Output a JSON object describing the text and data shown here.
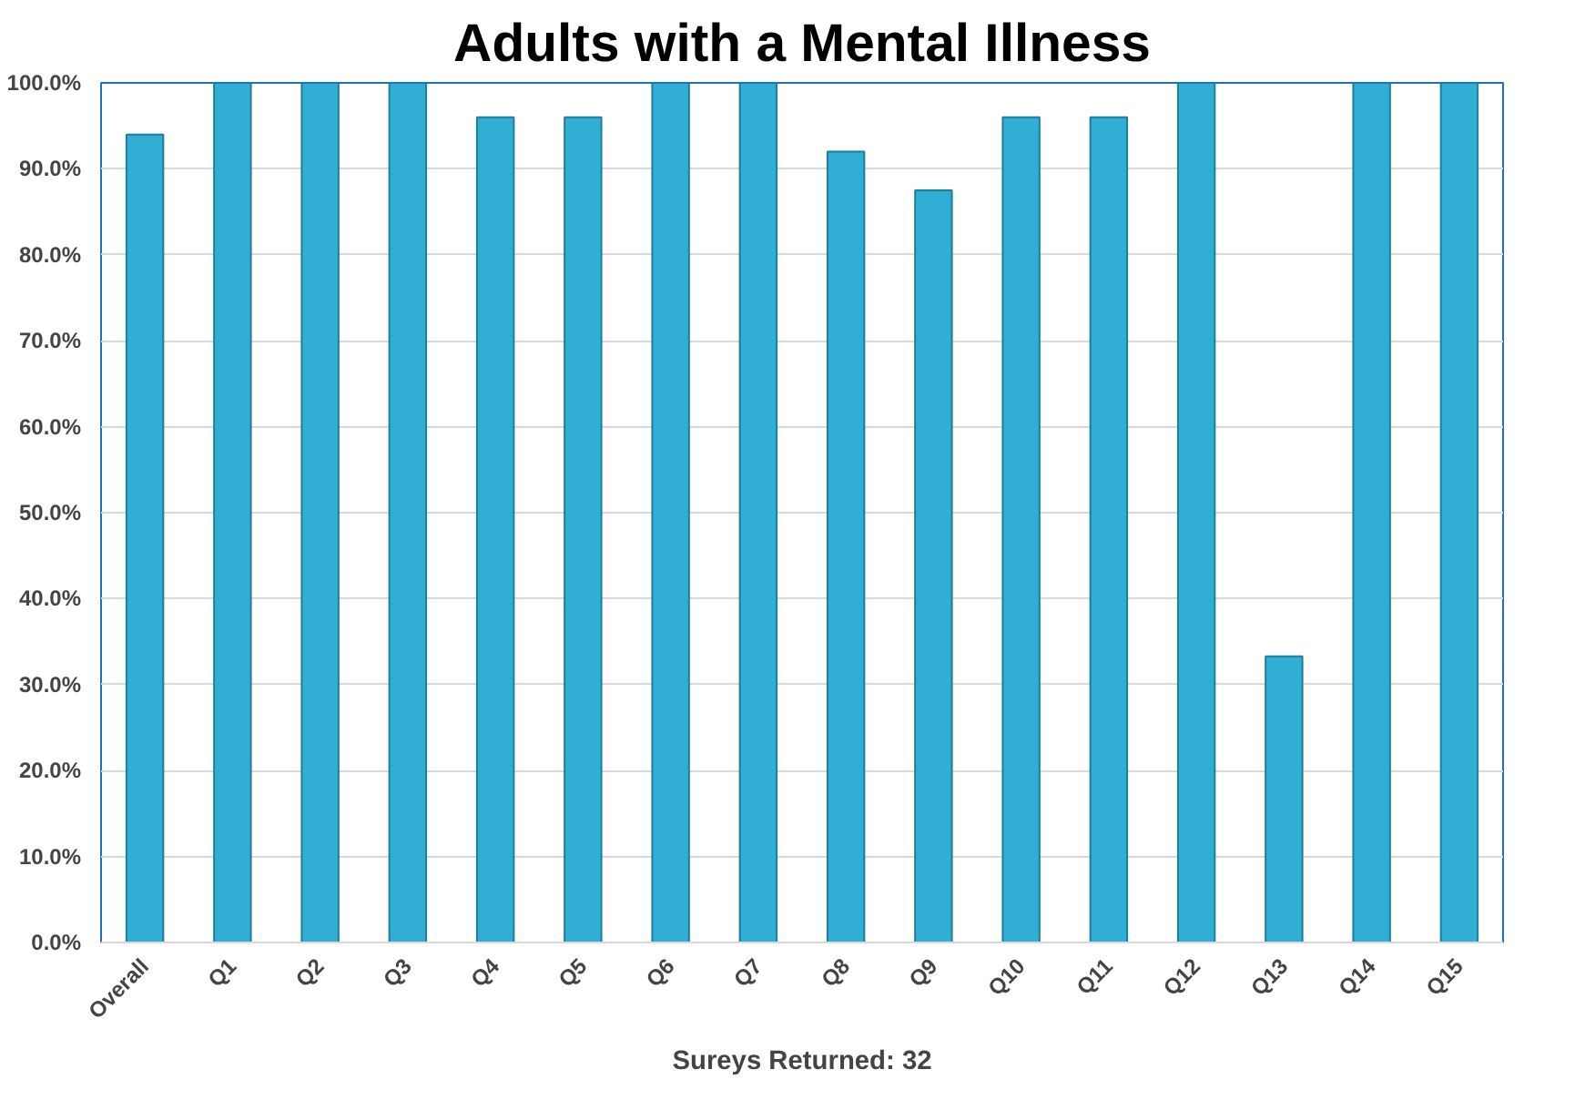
{
  "chart_data": {
    "type": "bar",
    "title": "Adults with a Mental Illness",
    "xlabel": "Sureys Returned: 32",
    "categories": [
      "Overall",
      "Q1",
      "Q2",
      "Q3",
      "Q4",
      "Q5",
      "Q6",
      "Q7",
      "Q8",
      "Q9",
      "Q10",
      "Q11",
      "Q12",
      "Q13",
      "Q14",
      "Q15"
    ],
    "values": [
      94,
      100,
      100,
      100,
      96,
      96,
      100,
      100,
      92,
      87.5,
      96,
      96,
      100,
      33.3,
      100,
      100
    ],
    "color": "#31aed3",
    "ylim": [
      0,
      100
    ],
    "yticks": [
      {
        "value": 0,
        "label": "0.0%"
      },
      {
        "value": 10,
        "label": "10.0%"
      },
      {
        "value": 20,
        "label": "20.0%"
      },
      {
        "value": 30,
        "label": "30.0%"
      },
      {
        "value": 40,
        "label": "40.0%"
      },
      {
        "value": 50,
        "label": "50.0%"
      },
      {
        "value": 60,
        "label": "60.0%"
      },
      {
        "value": 70,
        "label": "70.0%"
      },
      {
        "value": 80,
        "label": "80.0%"
      },
      {
        "value": 90,
        "label": "90.0%"
      },
      {
        "value": 100,
        "label": "100.0%"
      }
    ],
    "grid": "y"
  }
}
